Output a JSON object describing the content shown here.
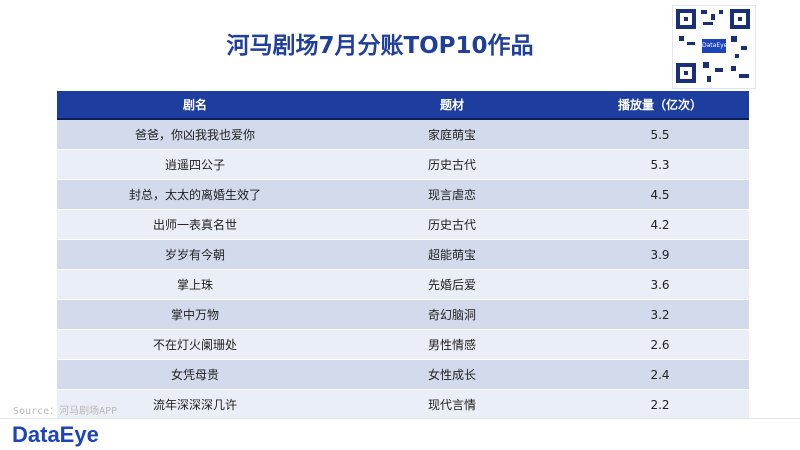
{
  "title": "河马剧场7月分账TOP10作品",
  "qr_center_text": "DataEye",
  "watermark": "DataEye",
  "table": {
    "headers": [
      "剧名",
      "题材",
      "播放量（亿次）"
    ],
    "rows": [
      [
        "爸爸，你凶我我也爱你",
        "家庭萌宝",
        "5.5"
      ],
      [
        "逍遥四公子",
        "历史古代",
        "5.3"
      ],
      [
        "封总，太太的离婚生效了",
        "现言虐恋",
        "4.5"
      ],
      [
        "出师一表真名世",
        "历史古代",
        "4.2"
      ],
      [
        "岁岁有今朝",
        "超能萌宝",
        "3.9"
      ],
      [
        "掌上珠",
        "先婚后爱",
        "3.6"
      ],
      [
        "掌中万物",
        "奇幻脑洞",
        "3.2"
      ],
      [
        "不在灯火阑珊处",
        "男性情感",
        "2.6"
      ],
      [
        "女凭母贵",
        "女性成长",
        "2.4"
      ],
      [
        "流年深深深几许",
        "现代言情",
        "2.2"
      ]
    ]
  },
  "source": "Source：河马剧场APP",
  "brand": "DataEye"
}
